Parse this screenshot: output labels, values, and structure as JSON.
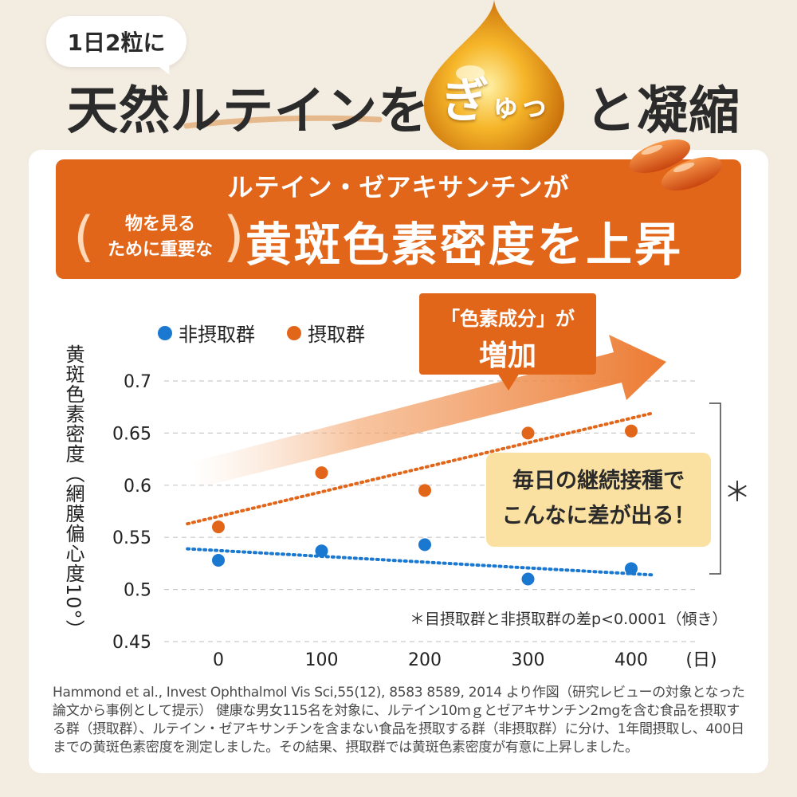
{
  "headline": {
    "bubble_text": "1日2粒に",
    "text_before": "天然ルテインを",
    "drop_text_big": "ぎ",
    "drop_text_small": "ゅっ",
    "text_after": "と凝縮"
  },
  "banner": {
    "subtitle": "ルテイン・ゼアキサンチンが",
    "paren_line1": "物を見る",
    "paren_line2": "ために重要な",
    "main": "黄斑色素密度を上昇"
  },
  "callout": {
    "line1": "「色素成分」が",
    "line2": "増加"
  },
  "note_box": {
    "line1": "毎日の継続接種で",
    "line2": "こんなに差が出る！"
  },
  "footnote": "＊目摂取群と非摂取群の差p<0.0001（傾き）",
  "bracket_star": "＊",
  "citation": "Hammond et al., Invest Ophthalmol Vis Sci,55(12), 8583 8589, 2014 より作図（研究レビューの対象となった論文から事例として提示） 健康な男女115名を対象に、ルテイン10ｍｇとゼアキサンチン2mgを含む食品を摂取する群（摂取群）、ルテイン・ゼアキサンチンを含まない食品を摂取する群（非摂取群）に分け、1年間摂取し、400日までの黄斑色素密度を測定しました。その結果、摂取群では黄斑色素密度が有意に上昇しました。",
  "colors": {
    "orange": "#e2661a",
    "blue": "#1a78d0",
    "note_yellow": "#fbe1a1"
  },
  "chart_data": {
    "type": "scatter",
    "ylabel": "黄斑色素密度（網膜偏心度10°）",
    "xunit": "(日)",
    "x_ticks": [
      0,
      100,
      200,
      300,
      400
    ],
    "y_ticks": [
      "0.45",
      "0.5",
      "0.55",
      "0.6",
      "0.65",
      "0.7"
    ],
    "xlim": [
      -50,
      420
    ],
    "ylim": [
      0.45,
      0.7
    ],
    "series": [
      {
        "name": "非摂取群",
        "color": "#1a78d0",
        "x": [
          0,
          100,
          200,
          300,
          400
        ],
        "y": [
          0.528,
          0.537,
          0.543,
          0.51,
          0.52
        ],
        "trend": [
          [
            -30,
            0.539
          ],
          [
            420,
            0.514
          ]
        ]
      },
      {
        "name": "摂取群",
        "color": "#e2661a",
        "x": [
          0,
          100,
          200,
          300,
          400
        ],
        "y": [
          0.56,
          0.612,
          0.595,
          0.65,
          0.652
        ],
        "trend": [
          [
            -30,
            0.563
          ],
          [
            420,
            0.669
          ]
        ]
      }
    ],
    "grid": "horizontal-dashed",
    "legend_position": "top-left"
  }
}
